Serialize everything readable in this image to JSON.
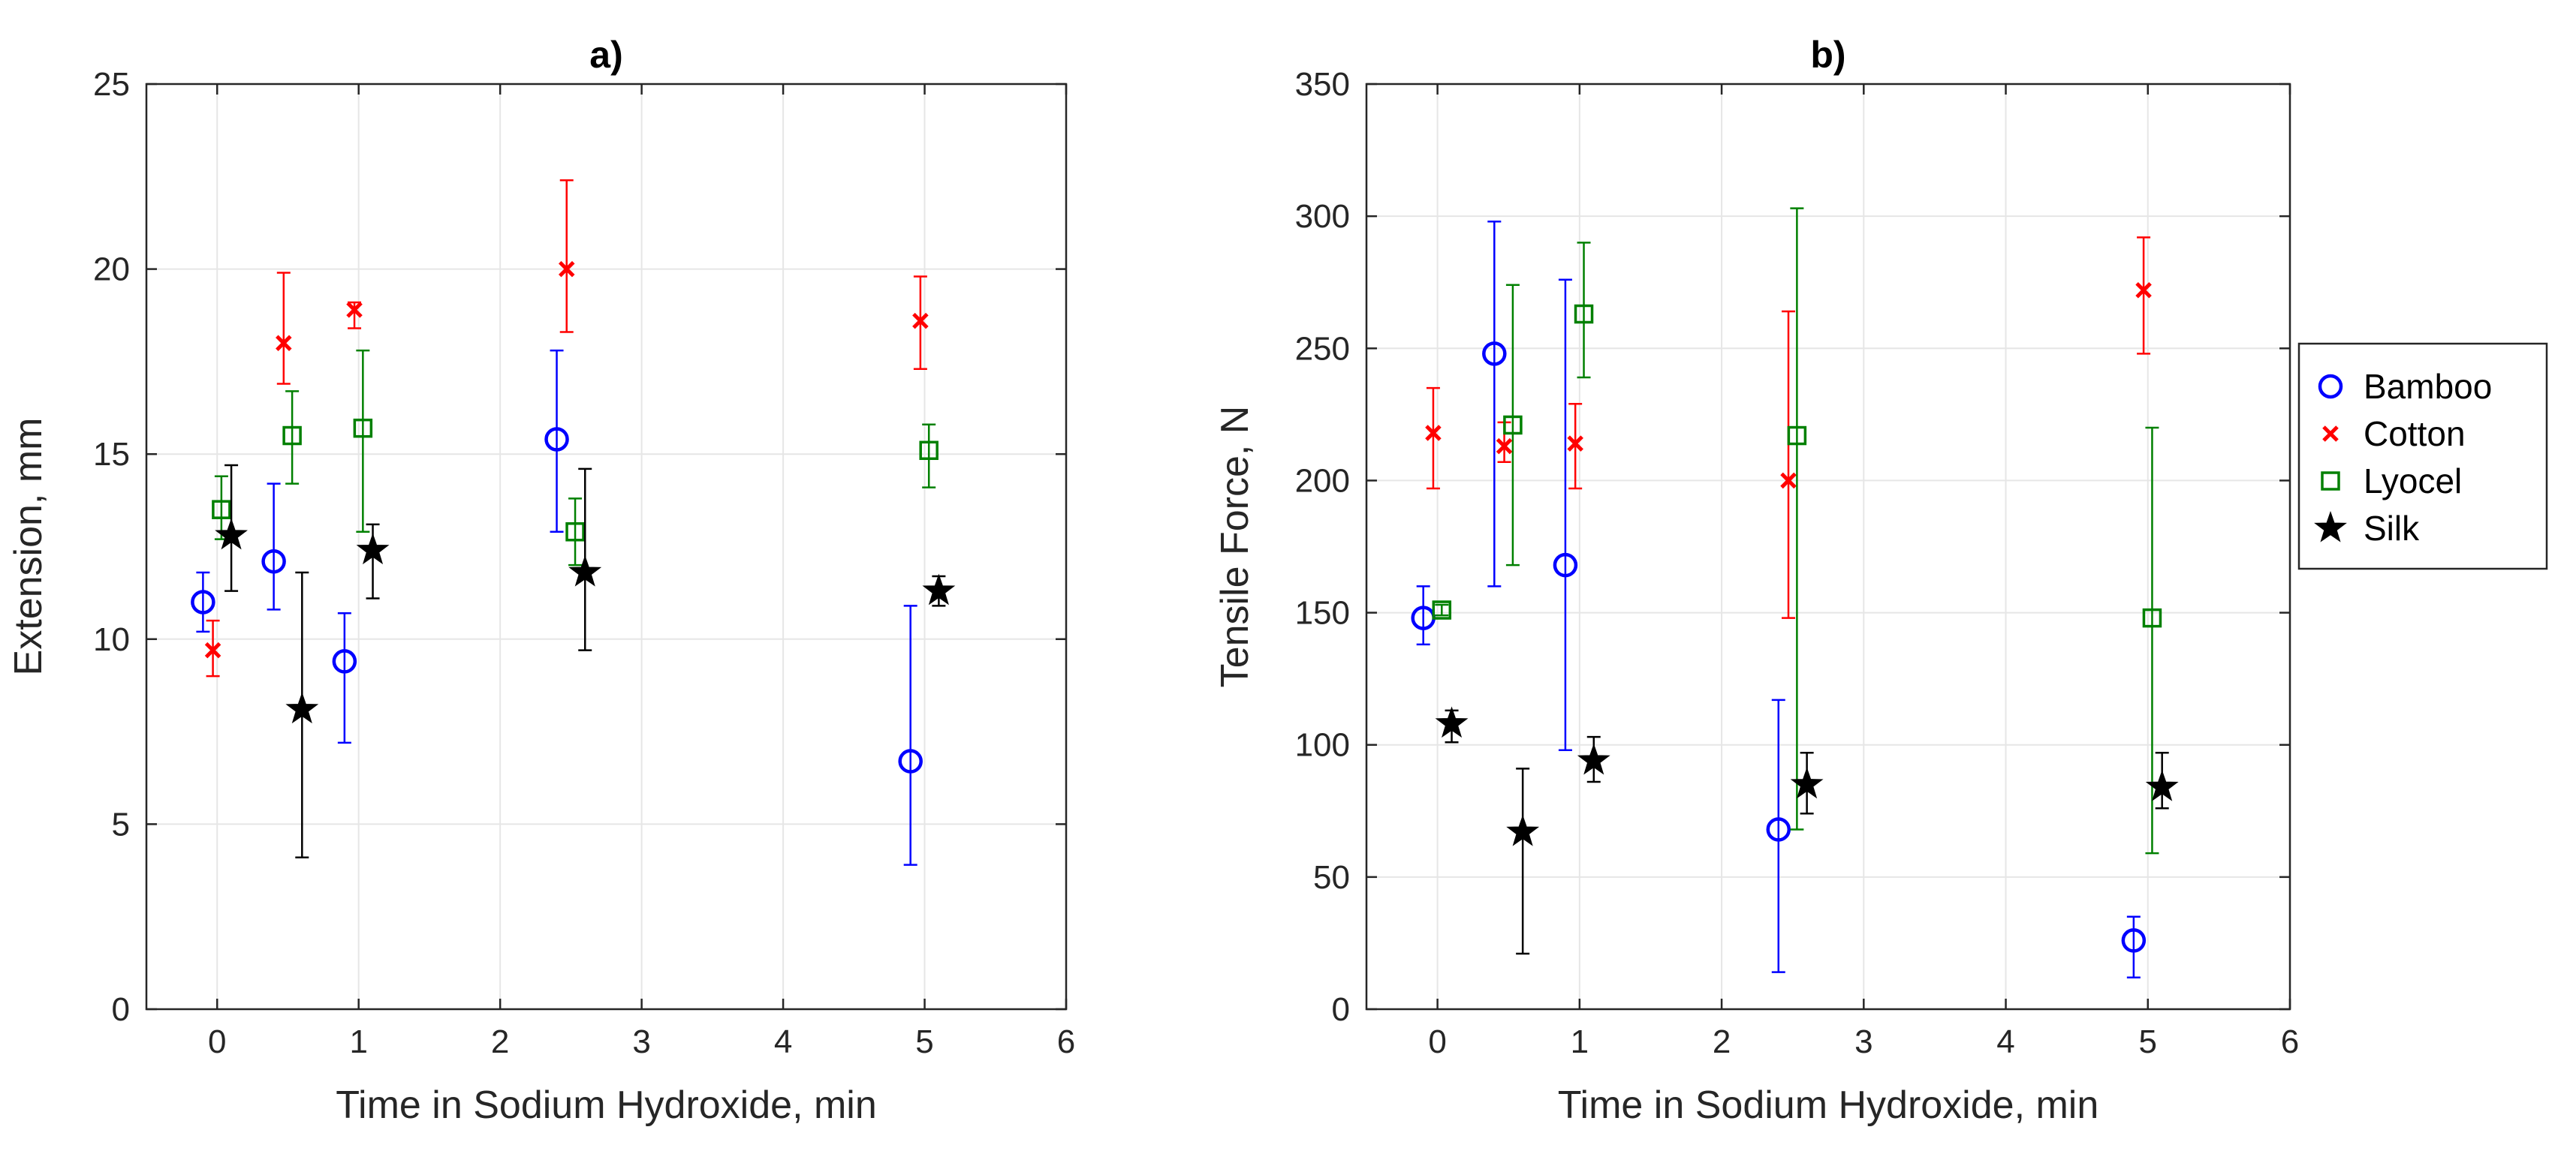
{
  "colors": {
    "Bamboo": "#0000ff",
    "Cotton": "#ff0000",
    "Lyocel": "#008000",
    "Silk": "#000000",
    "grid": "#e6e6e6",
    "axis": "#262626"
  },
  "legend": {
    "placement": "right",
    "entries": [
      {
        "label": "Bamboo",
        "marker": "circle"
      },
      {
        "label": "Cotton",
        "marker": "x"
      },
      {
        "label": "Lyocel",
        "marker": "square"
      },
      {
        "label": "Silk",
        "marker": "star"
      }
    ]
  },
  "chart_data": [
    {
      "type": "scatter",
      "title": "a)",
      "xlabel": "Time in Sodium Hydroxide, min",
      "ylabel": "Extension, mm",
      "xlim": [
        -0.5,
        6
      ],
      "ylim": [
        0,
        25
      ],
      "xticks": [
        "0",
        "1",
        "2",
        "3",
        "4",
        "5",
        "6"
      ],
      "yticks": [
        "0",
        "5",
        "10",
        "15",
        "20",
        "25"
      ],
      "grid": true,
      "error_bars": true,
      "series": [
        {
          "name": "Bamboo",
          "marker": "circle",
          "points": [
            {
              "x": -0.1,
              "y": 11.0,
              "lo": 10.2,
              "hi": 11.8
            },
            {
              "x": 0.4,
              "y": 12.1,
              "lo": 10.8,
              "hi": 14.2
            },
            {
              "x": 0.9,
              "y": 9.4,
              "lo": 7.2,
              "hi": 10.7
            },
            {
              "x": 2.4,
              "y": 15.4,
              "lo": 12.9,
              "hi": 17.8
            },
            {
              "x": 4.9,
              "y": 6.7,
              "lo": 3.9,
              "hi": 10.9
            }
          ]
        },
        {
          "name": "Cotton",
          "marker": "x",
          "points": [
            {
              "x": -0.03,
              "y": 9.7,
              "lo": 9.0,
              "hi": 10.5
            },
            {
              "x": 0.47,
              "y": 18.0,
              "lo": 16.9,
              "hi": 19.9
            },
            {
              "x": 0.97,
              "y": 18.9,
              "lo": 18.4,
              "hi": 19.1
            },
            {
              "x": 2.47,
              "y": 20.0,
              "lo": 18.3,
              "hi": 22.4
            },
            {
              "x": 4.97,
              "y": 18.6,
              "lo": 17.3,
              "hi": 19.8
            }
          ]
        },
        {
          "name": "Lyocel",
          "marker": "square",
          "points": [
            {
              "x": 0.03,
              "y": 13.5,
              "lo": 12.7,
              "hi": 14.4
            },
            {
              "x": 0.53,
              "y": 15.5,
              "lo": 14.2,
              "hi": 16.7
            },
            {
              "x": 1.03,
              "y": 15.7,
              "lo": 12.9,
              "hi": 17.8
            },
            {
              "x": 2.53,
              "y": 12.9,
              "lo": 12.0,
              "hi": 13.8
            },
            {
              "x": 5.03,
              "y": 15.1,
              "lo": 14.1,
              "hi": 15.8
            }
          ]
        },
        {
          "name": "Silk",
          "marker": "star",
          "points": [
            {
              "x": 0.1,
              "y": 12.8,
              "lo": 11.3,
              "hi": 14.7
            },
            {
              "x": 0.6,
              "y": 8.1,
              "lo": 4.1,
              "hi": 11.8
            },
            {
              "x": 1.1,
              "y": 12.4,
              "lo": 11.1,
              "hi": 13.1
            },
            {
              "x": 2.6,
              "y": 11.8,
              "lo": 9.7,
              "hi": 14.6
            },
            {
              "x": 5.1,
              "y": 11.3,
              "lo": 10.9,
              "hi": 11.7
            }
          ]
        }
      ]
    },
    {
      "type": "scatter",
      "title": "b)",
      "xlabel": "Time in Sodium Hydroxide, min",
      "ylabel": "Tensile Force, N",
      "xlim": [
        -0.5,
        6
      ],
      "ylim": [
        0,
        350
      ],
      "xticks": [
        "0",
        "1",
        "2",
        "3",
        "4",
        "5",
        "6"
      ],
      "yticks": [
        "0",
        "50",
        "100",
        "150",
        "200",
        "250",
        "300",
        "350"
      ],
      "grid": true,
      "error_bars": true,
      "series": [
        {
          "name": "Bamboo",
          "marker": "circle",
          "points": [
            {
              "x": -0.1,
              "y": 148,
              "lo": 138,
              "hi": 160
            },
            {
              "x": 0.4,
              "y": 248,
              "lo": 160,
              "hi": 298
            },
            {
              "x": 0.9,
              "y": 168,
              "lo": 98,
              "hi": 276
            },
            {
              "x": 2.4,
              "y": 68,
              "lo": 14,
              "hi": 117
            },
            {
              "x": 4.9,
              "y": 26,
              "lo": 12,
              "hi": 35
            }
          ]
        },
        {
          "name": "Cotton",
          "marker": "x",
          "points": [
            {
              "x": -0.03,
              "y": 218,
              "lo": 197,
              "hi": 235
            },
            {
              "x": 0.47,
              "y": 213,
              "lo": 207,
              "hi": 222
            },
            {
              "x": 0.97,
              "y": 214,
              "lo": 197,
              "hi": 229
            },
            {
              "x": 2.47,
              "y": 200,
              "lo": 148,
              "hi": 264
            },
            {
              "x": 4.97,
              "y": 272,
              "lo": 248,
              "hi": 292
            }
          ]
        },
        {
          "name": "Lyocel",
          "marker": "square",
          "points": [
            {
              "x": 0.03,
              "y": 151,
              "lo": 149,
              "hi": 153
            },
            {
              "x": 0.53,
              "y": 221,
              "lo": 168,
              "hi": 274
            },
            {
              "x": 1.03,
              "y": 263,
              "lo": 239,
              "hi": 290
            },
            {
              "x": 2.53,
              "y": 217,
              "lo": 68,
              "hi": 303
            },
            {
              "x": 5.03,
              "y": 148,
              "lo": 59,
              "hi": 220
            }
          ]
        },
        {
          "name": "Silk",
          "marker": "star",
          "points": [
            {
              "x": 0.1,
              "y": 108,
              "lo": 101,
              "hi": 113
            },
            {
              "x": 0.6,
              "y": 67,
              "lo": 21,
              "hi": 91
            },
            {
              "x": 1.1,
              "y": 94,
              "lo": 86,
              "hi": 103
            },
            {
              "x": 2.6,
              "y": 85,
              "lo": 74,
              "hi": 97
            },
            {
              "x": 5.1,
              "y": 84,
              "lo": 76,
              "hi": 97
            }
          ]
        }
      ]
    }
  ]
}
